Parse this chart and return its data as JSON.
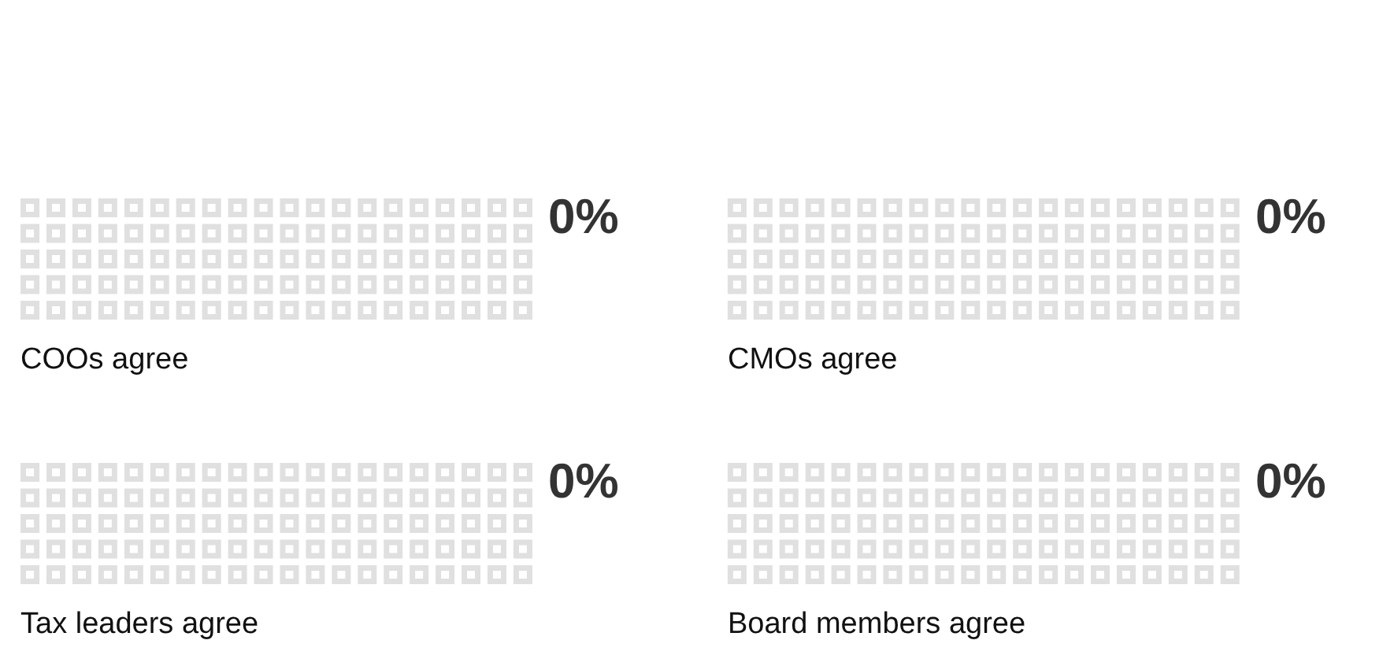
{
  "chart_data": [
    {
      "type": "other",
      "xlabel": "COOs agree",
      "values": [
        0
      ],
      "value_labels": [
        "0%"
      ],
      "color": "#e0e0e0"
    },
    {
      "type": "other",
      "xlabel": "CMOs agree",
      "values": [
        0
      ],
      "value_labels": [
        "0%"
      ],
      "color": "#e0e0e0"
    },
    {
      "type": "other",
      "xlabel": "Tax leaders agree",
      "values": [
        0
      ],
      "value_labels": [
        "0%"
      ],
      "color": "#e0e0e0"
    },
    {
      "type": "other",
      "xlabel": "Board members agree",
      "values": [
        0
      ],
      "value_labels": [
        "0%"
      ],
      "color": "#e0e0e0"
    }
  ]
}
